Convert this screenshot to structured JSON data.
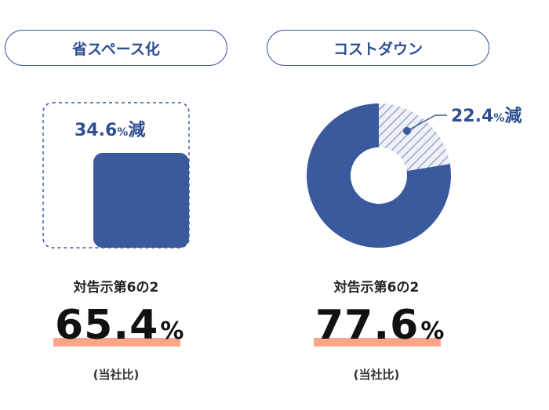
{
  "left": {
    "header": "省スペース化",
    "reduction_value": "34.6",
    "reduction_unit": "%",
    "reduction_suffix": "減",
    "caption": "対告示第6の2",
    "big_value": "65.4",
    "big_unit": "%",
    "note": "(当社比)"
  },
  "right": {
    "header": "コストダウン",
    "reduction_value": "22.4",
    "reduction_unit": "%",
    "reduction_suffix": "減",
    "caption": "対告示第6の2",
    "big_value": "77.6",
    "big_unit": "%",
    "note": "(当社比)"
  },
  "colors": {
    "accent": "#3b5a9d",
    "highlight": "#f8a58a",
    "hatch": "#b7c1d8"
  },
  "chart_data": [
    {
      "type": "area",
      "categories": [
        "対告示第6の2",
        "当社"
      ],
      "values": [
        100,
        65.4
      ],
      "reduction": 34.6
    },
    {
      "type": "pie",
      "labels": [
        "当社",
        "減"
      ],
      "values": [
        77.6,
        22.4
      ]
    }
  ]
}
